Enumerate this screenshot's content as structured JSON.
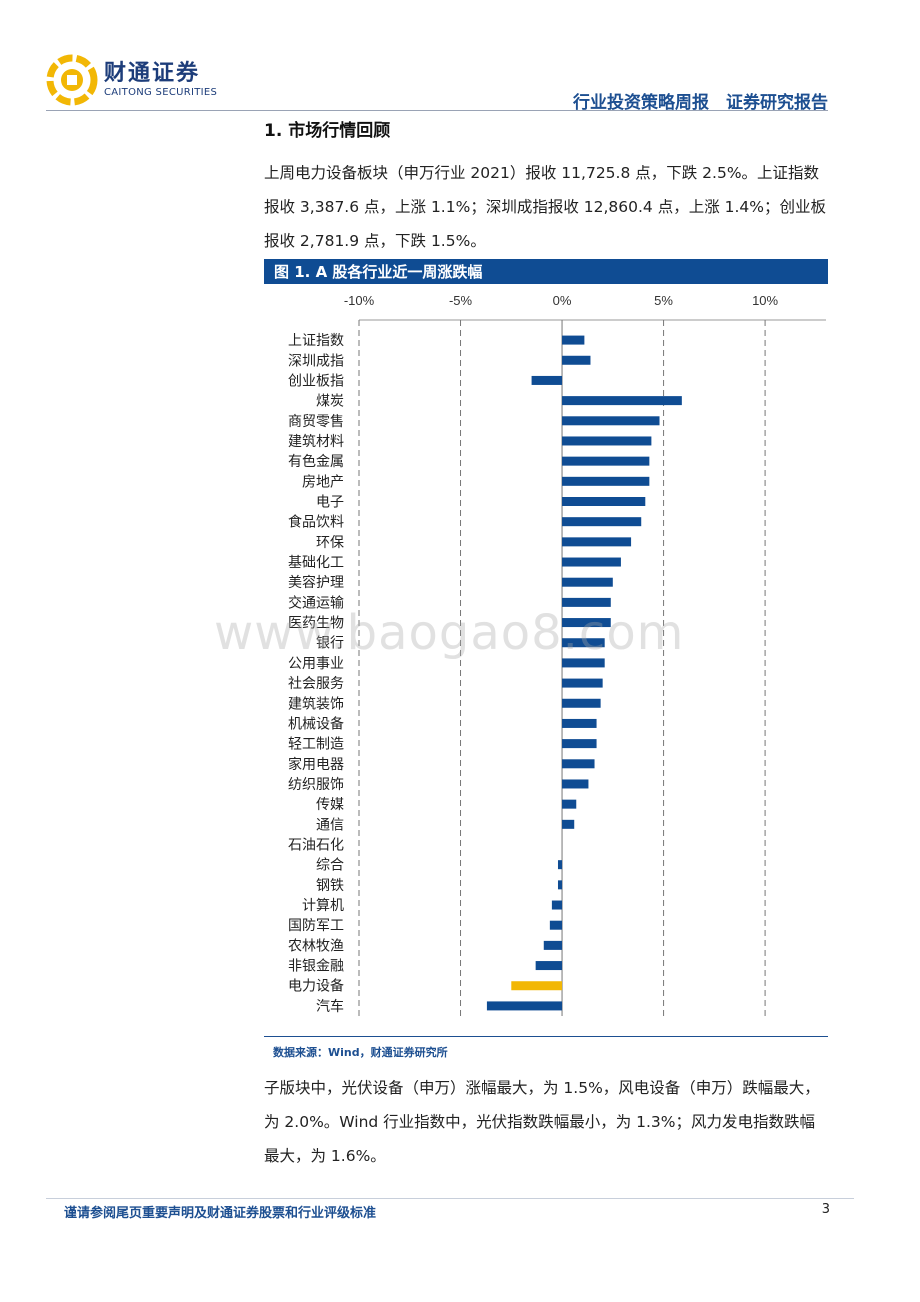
{
  "header": {
    "logo_cn": "财通证券",
    "logo_en": "CAITONG SECURITIES",
    "report_type": "行业投资策略周报　证券研究报告",
    "colors": {
      "brand_blue": "#1d3d7a",
      "logo_gold": "#f2b705"
    }
  },
  "section": {
    "title": "1.  市场行情回顾",
    "para1": "上周电力设备板块（申万行业 2021）报收 11,725.8 点，下跌 2.5%。上证指数报收 3,387.6 点，上涨 1.1%；深圳成指报收 12,860.4 点，上涨 1.4%；创业板报收 2,781.9 点，下跌 1.5%。"
  },
  "figure": {
    "title": "图 1. A 股各行业近一周涨跌幅",
    "source": "数据来源：Wind，财通证券研究所"
  },
  "chart_data": {
    "type": "bar",
    "orientation": "horizontal",
    "categories": [
      "上证指数",
      "深圳成指",
      "创业板指",
      "煤炭",
      "商贸零售",
      "建筑材料",
      "有色金属",
      "房地产",
      "电子",
      "食品饮料",
      "环保",
      "基础化工",
      "美容护理",
      "交通运输",
      "医药生物",
      "银行",
      "公用事业",
      "社会服务",
      "建筑装饰",
      "机械设备",
      "轻工制造",
      "家用电器",
      "纺织服饰",
      "传媒",
      "通信",
      "石油石化",
      "综合",
      "钢铁",
      "计算机",
      "国防军工",
      "农林牧渔",
      "非银金融",
      "电力设备",
      "汽车"
    ],
    "values": [
      1.1,
      1.4,
      -1.5,
      5.9,
      4.8,
      4.4,
      4.3,
      4.3,
      4.1,
      3.9,
      3.4,
      2.9,
      2.5,
      2.4,
      2.4,
      2.1,
      2.1,
      2.0,
      1.9,
      1.7,
      1.7,
      1.6,
      1.3,
      0.7,
      0.6,
      0.0,
      -0.2,
      -0.2,
      -0.5,
      -0.6,
      -0.9,
      -1.3,
      -2.5,
      -3.7
    ],
    "highlight_category": "电力设备",
    "xlim": [
      -10,
      13
    ],
    "xticks": [
      "-10%",
      "-5%",
      "0%",
      "5%",
      "10%"
    ],
    "xtick_values": [
      -10,
      -5,
      0,
      5,
      10
    ],
    "grid": true,
    "colors": {
      "bar": "#0f4c93",
      "highlight": "#f2b705",
      "grid": "#777777"
    },
    "title": "",
    "xlabel": "",
    "ylabel": ""
  },
  "section2": {
    "para": "子版块中，光伏设备（申万）涨幅最大，为 1.5%，风电设备（申万）跌幅最大，为 2.0%。Wind 行业指数中，光伏指数跌幅最小，为 1.3%；风力发电指数跌幅最大，为 1.6%。"
  },
  "watermark": "www.baogao8.com",
  "footer": {
    "disclaimer": "谨请参阅尾页重要声明及财通证券股票和行业评级标准",
    "page": "3"
  }
}
